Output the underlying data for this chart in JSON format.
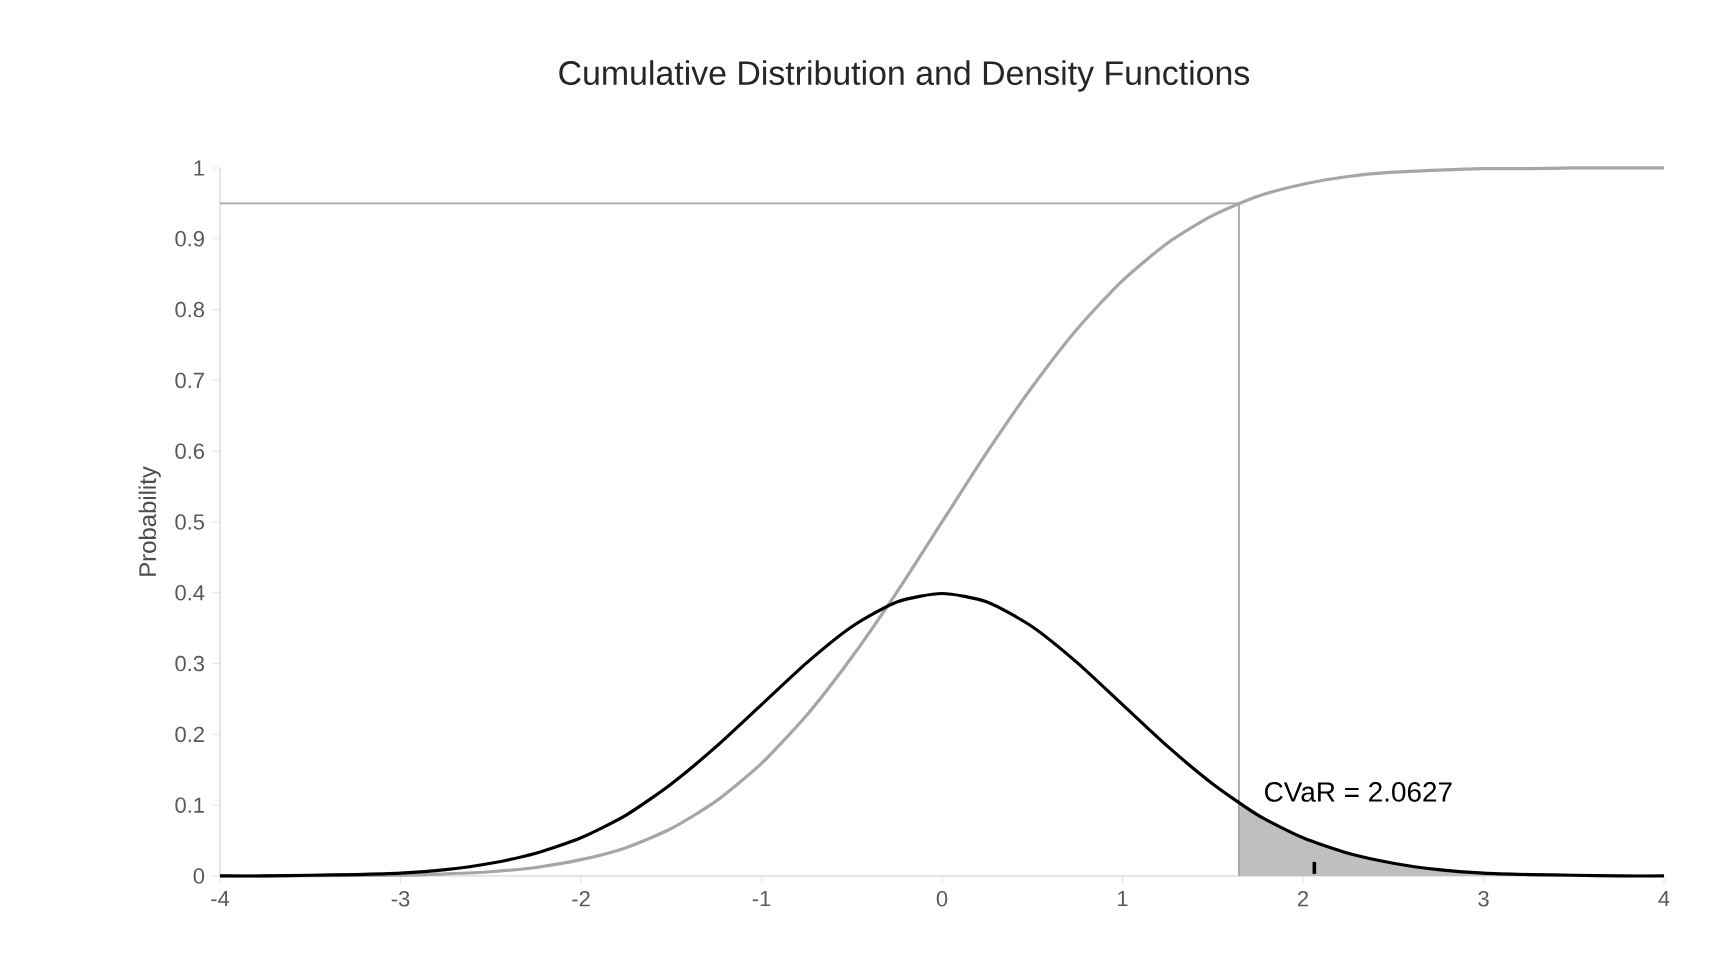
{
  "chart_data": {
    "type": "line",
    "title": "Cumulative Distribution and Density Functions",
    "ylabel": "Probability",
    "xlim": [
      -4,
      4
    ],
    "ylim": [
      0,
      1
    ],
    "xticks": [
      -4,
      -3,
      -2,
      -1,
      0,
      1,
      2,
      3,
      4
    ],
    "yticks": [
      0,
      0.1,
      0.2,
      0.3,
      0.4,
      0.5,
      0.6,
      0.7,
      0.8,
      0.9,
      1
    ],
    "grid": false,
    "marker": "none",
    "series": [
      {
        "type": "area",
        "color": "#bfbfbf",
        "x": [
          1.645,
          1.75,
          2,
          2.25,
          2.5,
          2.75,
          3,
          3.25,
          3.5,
          3.75,
          4
        ],
        "values": [
          0.103,
          0.086,
          0.054,
          0.032,
          0.018,
          0.009,
          0.004,
          0.002,
          0.001,
          0,
          0
        ]
      },
      {
        "color": "#a6a6a6",
        "x": [
          -4,
          1.645,
          1.645
        ],
        "values": [
          0.95,
          0.95,
          0
        ]
      },
      {
        "color": "#a6a6a6",
        "x": [
          -4,
          -3,
          -2.75,
          -2.5,
          -2.25,
          -2,
          -1.75,
          -1.5,
          -1.25,
          -1,
          -0.75,
          -0.5,
          -0.25,
          0,
          0.25,
          0.5,
          0.75,
          1,
          1.25,
          1.5,
          1.75,
          2,
          2.25,
          2.5,
          2.75,
          3,
          3.25,
          3.5,
          3.75,
          4
        ],
        "values": [
          0,
          0.001,
          0.003,
          0.006,
          0.012,
          0.023,
          0.04,
          0.067,
          0.106,
          0.159,
          0.227,
          0.309,
          0.401,
          0.5,
          0.599,
          0.691,
          0.773,
          0.841,
          0.894,
          0.933,
          0.96,
          0.977,
          0.988,
          0.994,
          0.997,
          0.999,
          0.999,
          1,
          1,
          1
        ]
      },
      {
        "color": "#000000",
        "x": [
          -4,
          -3.75,
          -3.5,
          -3.25,
          -3,
          -2.75,
          -2.5,
          -2.25,
          -2,
          -1.75,
          -1.5,
          -1.25,
          -1,
          -0.75,
          -0.5,
          -0.25,
          0,
          0.25,
          0.5,
          0.75,
          1,
          1.25,
          1.5,
          1.75,
          2,
          2.25,
          2.5,
          2.75,
          3,
          3.25,
          3.5,
          3.75,
          4
        ],
        "values": [
          0,
          0,
          0.001,
          0.002,
          0.004,
          0.009,
          0.018,
          0.032,
          0.054,
          0.086,
          0.13,
          0.183,
          0.242,
          0.301,
          0.352,
          0.387,
          0.399,
          0.387,
          0.352,
          0.301,
          0.242,
          0.183,
          0.13,
          0.086,
          0.054,
          0.032,
          0.018,
          0.009,
          0.004,
          0.002,
          0.001,
          0,
          0
        ]
      }
    ],
    "annotations": [
      {
        "text": "CVaR = 2.0627",
        "x": 2.0627,
        "y": 0.01
      }
    ]
  }
}
